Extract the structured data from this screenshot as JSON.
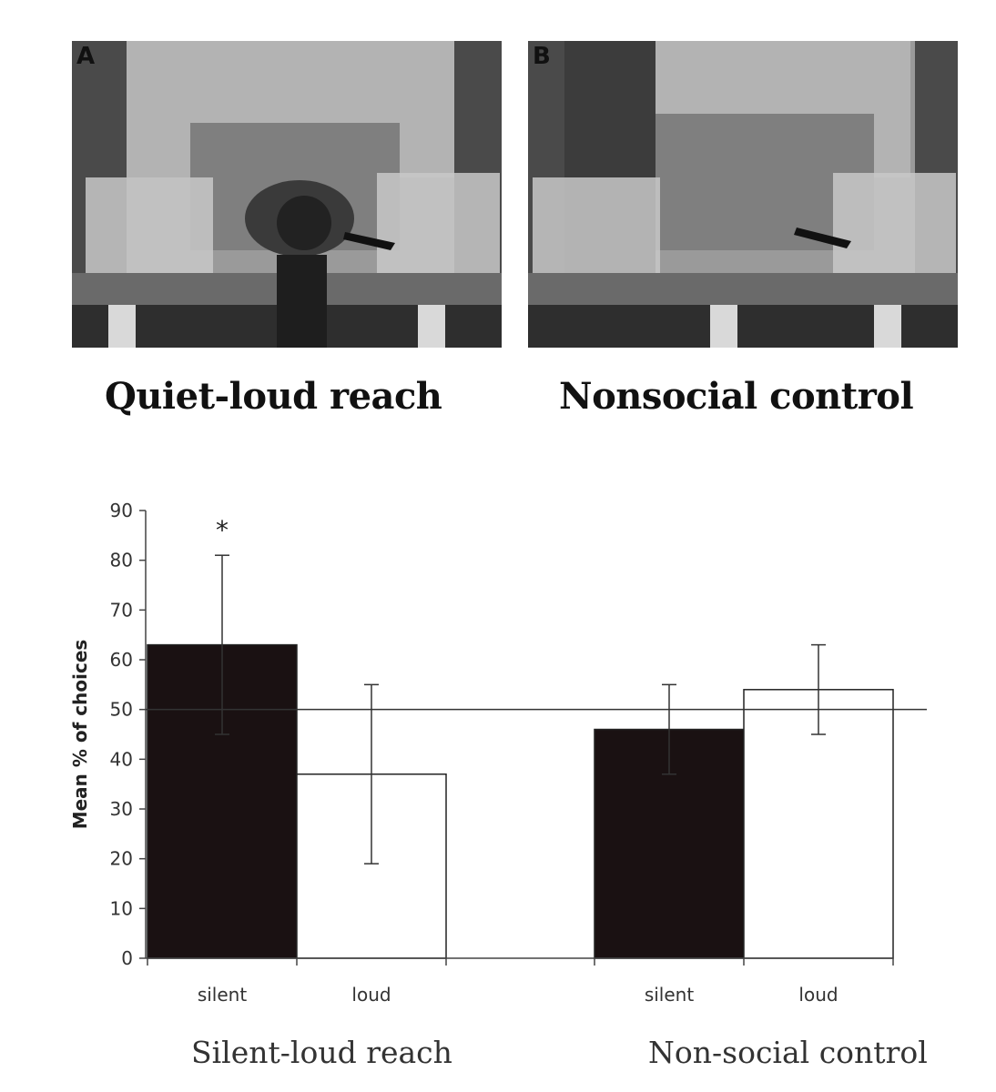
{
  "panels": [
    {
      "letter": "A",
      "caption": "Quiet-loud reach"
    },
    {
      "letter": "B",
      "caption": "Nonsocial control"
    }
  ],
  "chart_data": {
    "type": "bar",
    "ylabel": "Mean % of choices",
    "ylim": [
      0,
      90
    ],
    "yticks": [
      0,
      10,
      20,
      30,
      40,
      50,
      60,
      70,
      80,
      90
    ],
    "reference_line": 50,
    "groups": [
      {
        "label": "Silent-loud reach",
        "bars": [
          {
            "label": "silent",
            "value": 63,
            "error": 18,
            "fill": "#1a1112",
            "significance": "*"
          },
          {
            "label": "loud",
            "value": 37,
            "error": 18,
            "fill": "#ffffff"
          }
        ]
      },
      {
        "label": "Non-social control",
        "bars": [
          {
            "label": "silent",
            "value": 46,
            "error": 9,
            "fill": "#1a1112"
          },
          {
            "label": "loud",
            "value": 54,
            "error": 9,
            "fill": "#ffffff"
          }
        ]
      }
    ]
  }
}
